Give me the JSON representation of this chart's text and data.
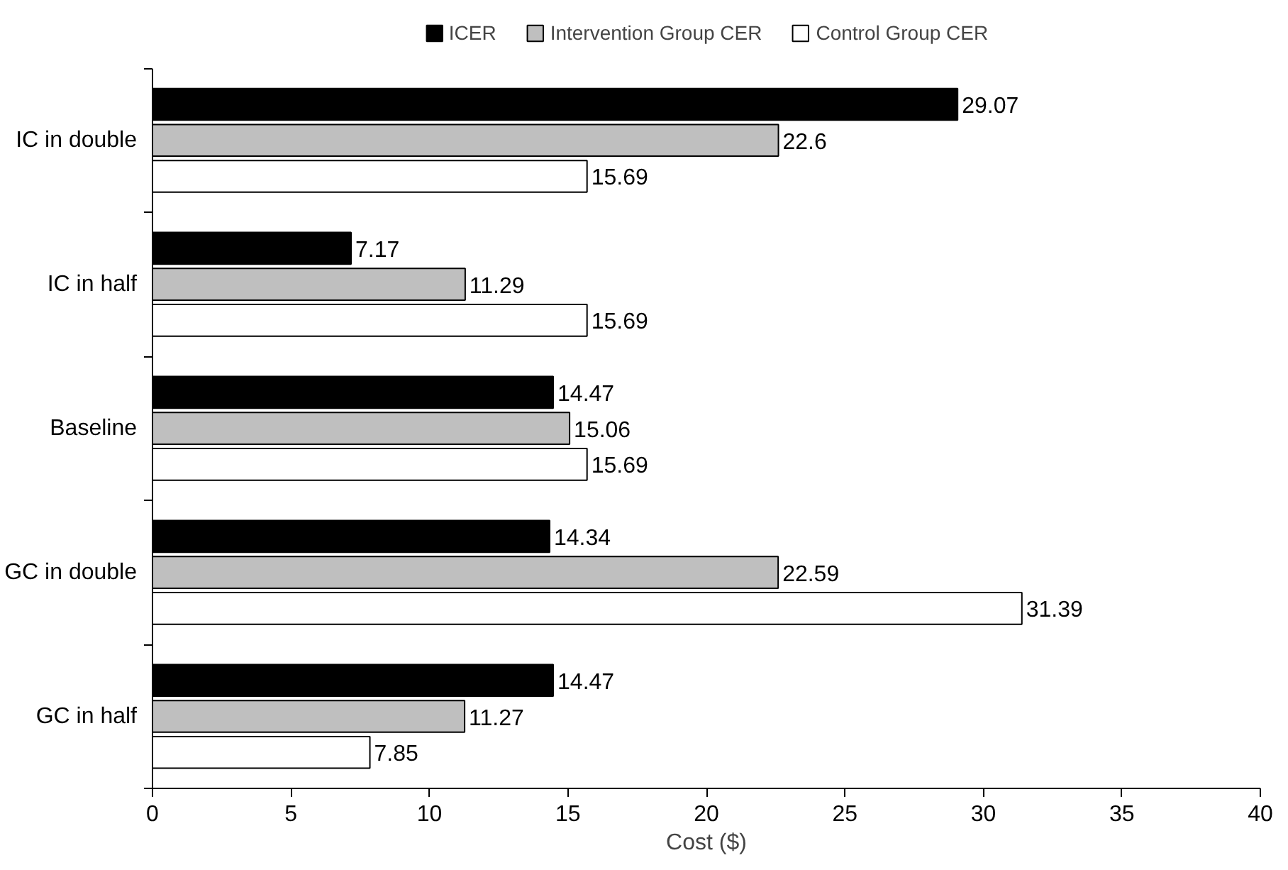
{
  "chart_data": {
    "type": "bar",
    "orientation": "horizontal",
    "xlabel": "Cost ($)",
    "categories": [
      "IC in double",
      "IC in half",
      "Baseline",
      "GC in double",
      "GC in half"
    ],
    "series": [
      {
        "name": "ICER",
        "color": "#000000",
        "values": [
          29.07,
          7.17,
          14.47,
          14.34,
          14.47
        ]
      },
      {
        "name": "Intervention Group CER",
        "color": "#bfbfbf",
        "values": [
          22.6,
          11.29,
          15.06,
          22.59,
          11.27
        ]
      },
      {
        "name": "Control Group CER",
        "color": "#ffffff",
        "values": [
          15.69,
          15.69,
          15.69,
          31.39,
          7.85
        ]
      }
    ],
    "xlim": [
      0,
      40
    ],
    "xticks": [
      0,
      5,
      10,
      15,
      20,
      25,
      30,
      35,
      40
    ],
    "data_labels": true,
    "legend": "top",
    "grid": false
  }
}
